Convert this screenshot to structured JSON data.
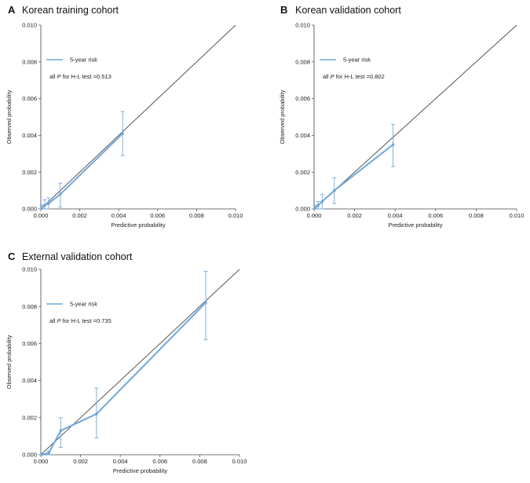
{
  "chart_data": [
    {
      "type": "line",
      "panel_letter": "A",
      "title": "Korean training cohort",
      "xlabel": "Predictive probability",
      "ylabel": "Observed probability",
      "xlim": [
        0,
        0.01
      ],
      "ylim": [
        0,
        0.01
      ],
      "ticks": [
        "0.000",
        "0.002",
        "0.004",
        "0.006",
        "0.008",
        "0.010"
      ],
      "reference_line": true,
      "legend": "5-year risk",
      "annotation": {
        "prefix": "all ",
        "italic": "P",
        "suffix": " for H-L test =0.513"
      },
      "series": [
        {
          "name": "5-year risk",
          "points": [
            {
              "x": 5e-05,
              "y": 3e-05,
              "lo": 0.0,
              "hi": 0.0002
            },
            {
              "x": 0.0002,
              "y": 0.0002,
              "lo": 0.0,
              "hi": 0.0005
            },
            {
              "x": 0.0004,
              "y": 0.0003,
              "lo": 0.0,
              "hi": 0.0006
            },
            {
              "x": 0.001,
              "y": 0.0008,
              "lo": 0.0001,
              "hi": 0.0014
            },
            {
              "x": 0.0042,
              "y": 0.0041,
              "lo": 0.0029,
              "hi": 0.0053
            }
          ]
        }
      ]
    },
    {
      "type": "line",
      "panel_letter": "B",
      "title": "Korean validation cohort",
      "xlabel": "Predictive probability",
      "ylabel": "Observed probability",
      "xlim": [
        0,
        0.01
      ],
      "ylim": [
        0,
        0.01
      ],
      "ticks": [
        "0.000",
        "0.002",
        "0.004",
        "0.006",
        "0.008",
        "0.010"
      ],
      "reference_line": true,
      "legend": "5-year risk",
      "annotation": {
        "prefix": "all ",
        "italic": "P",
        "suffix": " for H-L test =0.802"
      },
      "series": [
        {
          "name": "5-year risk",
          "points": [
            {
              "x": 5e-05,
              "y": 3e-05,
              "lo": 0.0,
              "hi": 0.0002
            },
            {
              "x": 0.0002,
              "y": 0.0002,
              "lo": 0.0,
              "hi": 0.0004
            },
            {
              "x": 0.0004,
              "y": 0.0004,
              "lo": 0.0,
              "hi": 0.0008
            },
            {
              "x": 0.001,
              "y": 0.001,
              "lo": 0.0003,
              "hi": 0.0017
            },
            {
              "x": 0.0039,
              "y": 0.0035,
              "lo": 0.0023,
              "hi": 0.0046
            }
          ]
        }
      ]
    },
    {
      "type": "line",
      "panel_letter": "C",
      "title": "External validation cohort",
      "xlabel": "Predictive probability",
      "ylabel": "Observed probability",
      "xlim": [
        0,
        0.01
      ],
      "ylim": [
        0,
        0.01
      ],
      "ticks": [
        "0.000",
        "0.002",
        "0.004",
        "0.006",
        "0.008",
        "0.010"
      ],
      "reference_line": true,
      "legend": "5-year risk",
      "annotation": {
        "prefix": "all ",
        "italic": "P",
        "suffix": " for H-L test =0.735"
      },
      "series": [
        {
          "name": "5-year risk",
          "points": [
            {
              "x": 5e-05,
              "y": 0.0,
              "lo": 0.0,
              "hi": 0.0001
            },
            {
              "x": 0.0004,
              "y": 0.0001,
              "lo": 0.0,
              "hi": 0.0002
            },
            {
              "x": 0.001,
              "y": 0.0013,
              "lo": 0.0004,
              "hi": 0.002
            },
            {
              "x": 0.0028,
              "y": 0.0022,
              "lo": 0.0009,
              "hi": 0.0036
            },
            {
              "x": 0.0083,
              "y": 0.0082,
              "lo": 0.0062,
              "hi": 0.0099
            }
          ]
        }
      ]
    }
  ],
  "colors": {
    "series": "#6fa8dc",
    "reference": "#555555",
    "axis": "#444444"
  }
}
